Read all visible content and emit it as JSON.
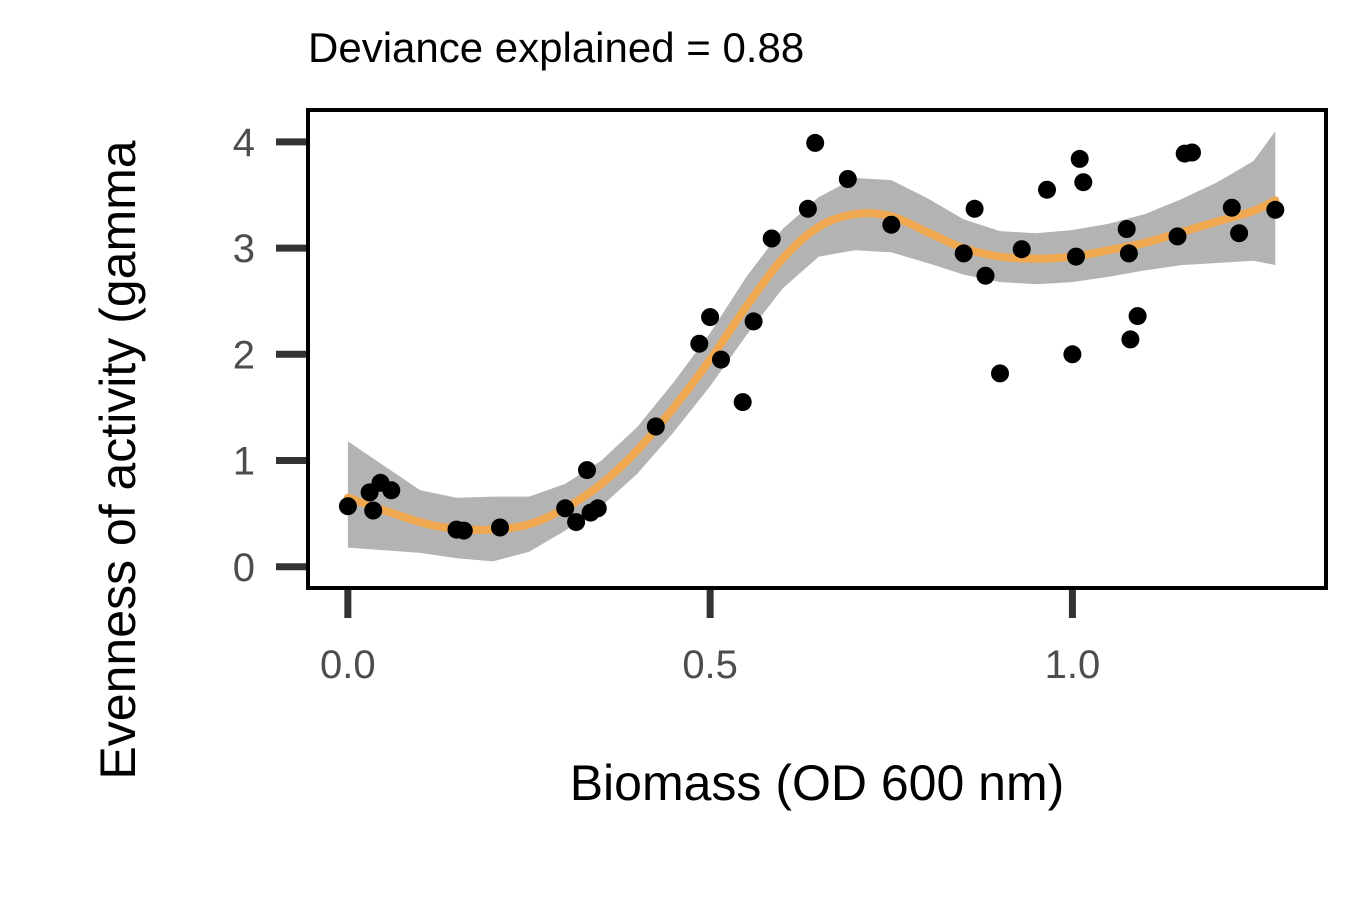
{
  "chart_data": {
    "type": "scatter",
    "subtitle": "Deviance explained = 0.88",
    "xlabel": "Biomass (OD 600 nm)",
    "ylabel": "Evenness of activity (gamma",
    "xlim": [
      -0.055,
      1.35
    ],
    "ylim": [
      -0.2,
      4.3
    ],
    "x_ticks": [
      0.0,
      0.5,
      1.0
    ],
    "x_tick_labels": [
      "0.0",
      "0.5",
      "1.0"
    ],
    "y_ticks": [
      0,
      1,
      2,
      3,
      4
    ],
    "y_tick_labels": [
      "0",
      "1",
      "2",
      "3",
      "4"
    ],
    "grid": false,
    "legend": "none",
    "colors": {
      "points": "#000000",
      "fit": "#F0A850",
      "band": "#B3B3B3",
      "frame": "#000000",
      "ticks": "#333333"
    },
    "points": [
      {
        "x": 0.0,
        "y": 0.57
      },
      {
        "x": 0.03,
        "y": 0.7
      },
      {
        "x": 0.035,
        "y": 0.53
      },
      {
        "x": 0.045,
        "y": 0.79
      },
      {
        "x": 0.06,
        "y": 0.72
      },
      {
        "x": 0.15,
        "y": 0.35
      },
      {
        "x": 0.16,
        "y": 0.34
      },
      {
        "x": 0.21,
        "y": 0.37
      },
      {
        "x": 0.3,
        "y": 0.55
      },
      {
        "x": 0.315,
        "y": 0.42
      },
      {
        "x": 0.33,
        "y": 0.91
      },
      {
        "x": 0.335,
        "y": 0.51
      },
      {
        "x": 0.345,
        "y": 0.55
      },
      {
        "x": 0.425,
        "y": 1.32
      },
      {
        "x": 0.485,
        "y": 2.1
      },
      {
        "x": 0.5,
        "y": 2.35
      },
      {
        "x": 0.515,
        "y": 1.95
      },
      {
        "x": 0.545,
        "y": 1.55
      },
      {
        "x": 0.56,
        "y": 2.31
      },
      {
        "x": 0.585,
        "y": 3.09
      },
      {
        "x": 0.635,
        "y": 3.37
      },
      {
        "x": 0.645,
        "y": 3.99
      },
      {
        "x": 0.69,
        "y": 3.65
      },
      {
        "x": 0.75,
        "y": 3.22
      },
      {
        "x": 0.85,
        "y": 2.95
      },
      {
        "x": 0.865,
        "y": 3.37
      },
      {
        "x": 0.88,
        "y": 2.74
      },
      {
        "x": 0.9,
        "y": 1.82
      },
      {
        "x": 0.93,
        "y": 2.99
      },
      {
        "x": 0.965,
        "y": 3.55
      },
      {
        "x": 1.0,
        "y": 2.0
      },
      {
        "x": 1.005,
        "y": 2.92
      },
      {
        "x": 1.01,
        "y": 3.84
      },
      {
        "x": 1.015,
        "y": 3.62
      },
      {
        "x": 1.075,
        "y": 3.18
      },
      {
        "x": 1.078,
        "y": 2.95
      },
      {
        "x": 1.08,
        "y": 2.14
      },
      {
        "x": 1.09,
        "y": 2.36
      },
      {
        "x": 1.145,
        "y": 3.11
      },
      {
        "x": 1.155,
        "y": 3.89
      },
      {
        "x": 1.165,
        "y": 3.9
      },
      {
        "x": 1.22,
        "y": 3.38
      },
      {
        "x": 1.23,
        "y": 3.14
      },
      {
        "x": 1.28,
        "y": 3.36
      }
    ],
    "fit": {
      "x": [
        0.0,
        0.1,
        0.15,
        0.2,
        0.25,
        0.3,
        0.35,
        0.4,
        0.45,
        0.5,
        0.55,
        0.6,
        0.65,
        0.7,
        0.75,
        0.8,
        0.85,
        0.9,
        0.95,
        1.0,
        1.05,
        1.1,
        1.15,
        1.2,
        1.25,
        1.28
      ],
      "y": [
        0.65,
        0.42,
        0.36,
        0.35,
        0.4,
        0.55,
        0.78,
        1.1,
        1.5,
        1.95,
        2.45,
        2.9,
        3.2,
        3.32,
        3.3,
        3.15,
        3.0,
        2.92,
        2.9,
        2.92,
        2.98,
        3.05,
        3.15,
        3.25,
        3.35,
        3.45
      ],
      "lower": [
        0.18,
        0.13,
        0.08,
        0.05,
        0.14,
        0.34,
        0.57,
        0.88,
        1.27,
        1.7,
        2.18,
        2.62,
        2.92,
        2.98,
        2.96,
        2.86,
        2.75,
        2.68,
        2.66,
        2.68,
        2.73,
        2.79,
        2.84,
        2.86,
        2.88,
        2.84
      ],
      "upper": [
        1.18,
        0.72,
        0.65,
        0.66,
        0.66,
        0.78,
        1.0,
        1.32,
        1.74,
        2.2,
        2.73,
        3.18,
        3.48,
        3.66,
        3.64,
        3.47,
        3.27,
        3.16,
        3.14,
        3.17,
        3.23,
        3.32,
        3.46,
        3.62,
        3.82,
        4.1
      ]
    }
  }
}
